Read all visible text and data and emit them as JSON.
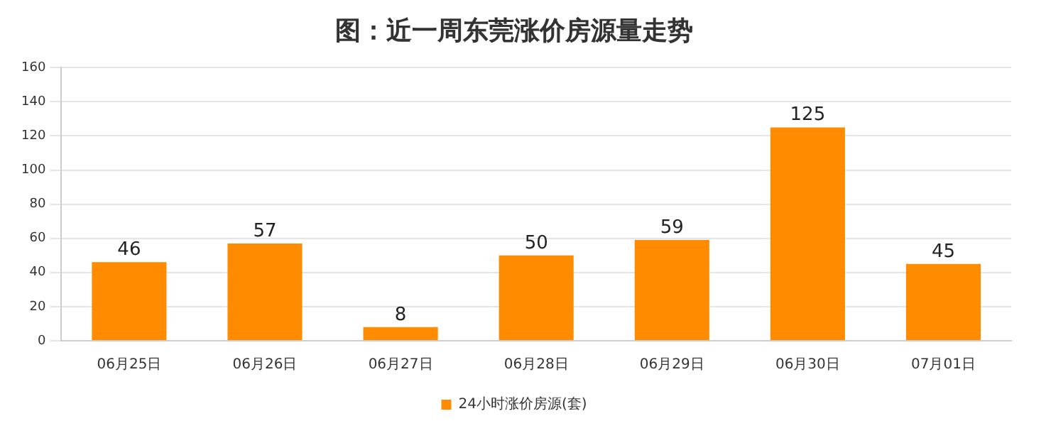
{
  "chart_data": {
    "type": "bar",
    "title": "图：近一周东莞涨价房源量走势",
    "categories": [
      "06月25日",
      "06月26日",
      "06月27日",
      "06月28日",
      "06月29日",
      "06月30日",
      "07月01日"
    ],
    "series": [
      {
        "name": "24小时涨价房源(套)",
        "color": "#ff8c00",
        "values": [
          46,
          57,
          8,
          50,
          59,
          125,
          45
        ]
      }
    ],
    "ylim": [
      0,
      160
    ],
    "yticks": [
      0,
      20,
      40,
      60,
      80,
      100,
      120,
      140,
      160
    ],
    "grid": "y",
    "legend": "bottom",
    "data_labels": true
  }
}
